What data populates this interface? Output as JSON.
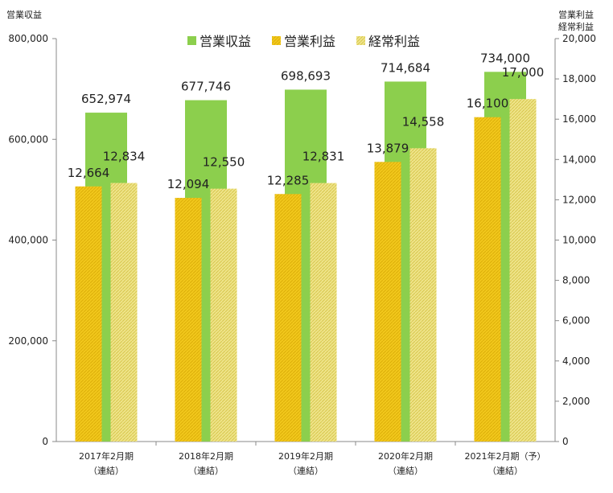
{
  "chart_data": {
    "type": "bar",
    "left_axis_title": "営業収益",
    "right_axis_title_line1": "営業利益",
    "right_axis_title_line2": "経常利益",
    "categories": [
      [
        "2017年2月期",
        "（連結）"
      ],
      [
        "2018年2月期",
        "（連結）"
      ],
      [
        "2019年2月期",
        "（連結）"
      ],
      [
        "2020年2月期",
        "（連結）"
      ],
      [
        "2021年2月期（予）",
        "（連結）"
      ]
    ],
    "y_left": {
      "min": 0,
      "max": 800000,
      "ticks": [
        "0",
        "200,000",
        "400,000",
        "600,000",
        "800,000"
      ],
      "tick_values": [
        0,
        200000,
        400000,
        600000,
        800000
      ]
    },
    "y_right": {
      "min": 0,
      "max": 20000,
      "ticks": [
        "0",
        "2,000",
        "4,000",
        "6,000",
        "8,000",
        "10,000",
        "12,000",
        "14,000",
        "16,000",
        "18,000",
        "20,000"
      ],
      "tick_values": [
        0,
        2000,
        4000,
        6000,
        8000,
        10000,
        12000,
        14000,
        16000,
        18000,
        20000
      ]
    },
    "series": [
      {
        "name": "営業収益",
        "axis": "left",
        "color": "#8ccf4d",
        "values": [
          652974,
          677746,
          698693,
          714684,
          734000
        ],
        "labels": [
          "652,974",
          "677,746",
          "698,693",
          "714,684",
          "734,000"
        ]
      },
      {
        "name": "営業利益",
        "axis": "right",
        "color": "#f0c419",
        "values": [
          12664,
          12094,
          12285,
          13879,
          16100
        ],
        "labels": [
          "12,664",
          "12,094",
          "12,285",
          "13,879",
          "16,100"
        ]
      },
      {
        "name": "経常利益",
        "axis": "right",
        "color": "#ede07a",
        "values": [
          12834,
          12550,
          12831,
          14558,
          17000
        ],
        "labels": [
          "12,834",
          "12,550",
          "12,831",
          "14,558",
          "17,000"
        ]
      }
    ],
    "legend_position": "top-center",
    "grid": false
  }
}
